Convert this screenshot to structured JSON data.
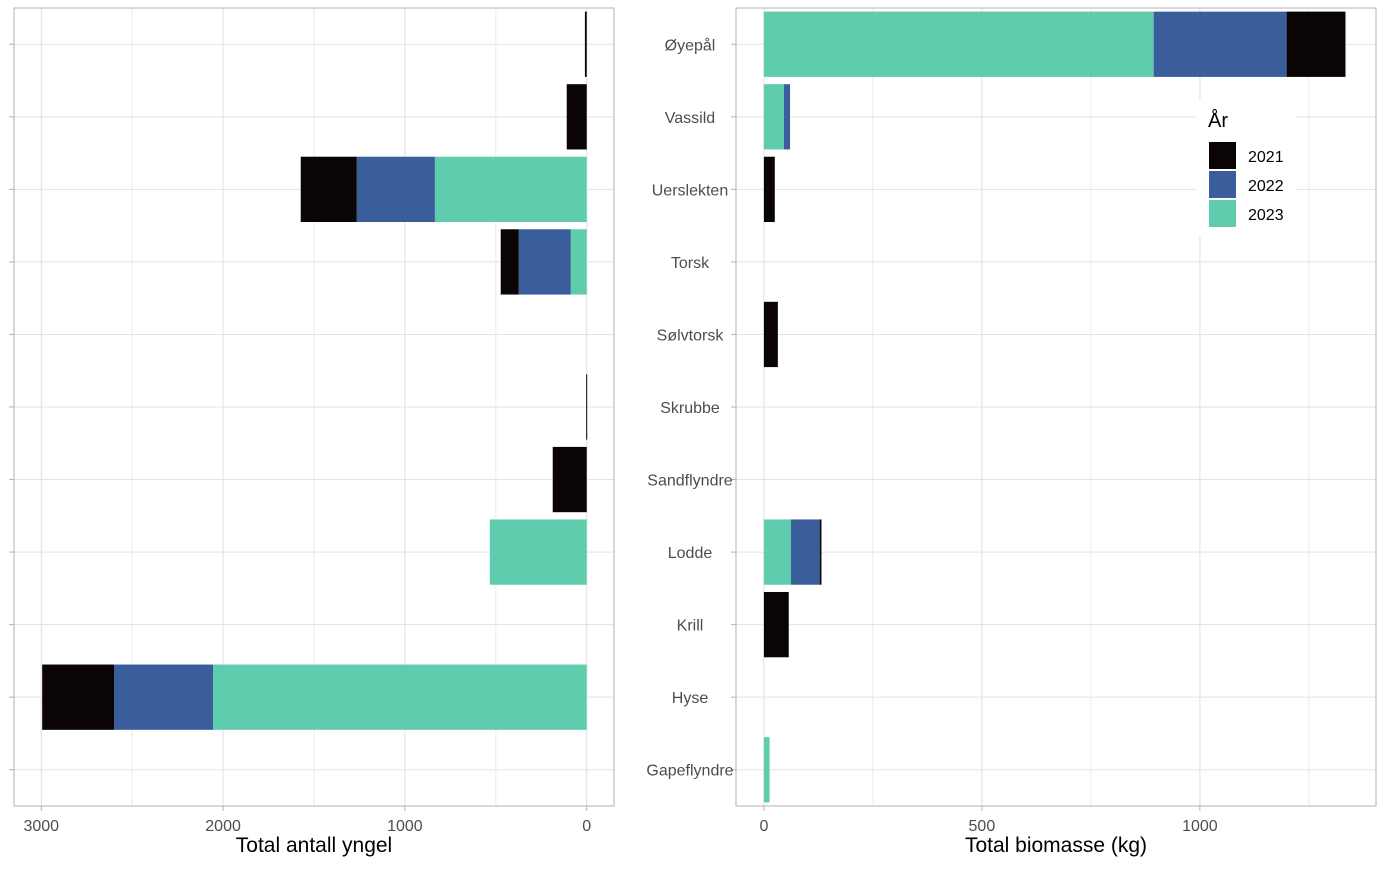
{
  "colors": {
    "2021": "#0b0405",
    "2022": "#3a5e9c",
    "2023": "#5fcdad"
  },
  "legend": {
    "title": "År",
    "entries": [
      "2021",
      "2022",
      "2023"
    ],
    "placement": "top-right of right panel"
  },
  "chart_data": [
    {
      "type": "bar",
      "orientation": "horizontal-stacked",
      "xlabel": "Total antall yngel",
      "ylabel": "",
      "xlim": [
        3150,
        -150
      ],
      "x_reversed": true,
      "xticks": [
        3000,
        2000,
        1000,
        0
      ],
      "grid": true,
      "categories": [
        "Øyepål",
        "Vassild",
        "Uerslekten",
        "Torsk",
        "Sølvtorsk",
        "Skrubbe",
        "Sandflyndre",
        "Lodde",
        "Krill",
        "Hyse",
        "Gapeflyndre"
      ],
      "series": [
        {
          "name": "2023",
          "values": [
            0,
            0,
            835,
            88,
            0,
            0,
            0,
            533,
            0,
            2055,
            0
          ]
        },
        {
          "name": "2022",
          "values": [
            0,
            0,
            430,
            286,
            0,
            0,
            0,
            0,
            0,
            544,
            0
          ]
        },
        {
          "name": "2021",
          "values": [
            10,
            110,
            308,
            99,
            0,
            3,
            187,
            0,
            0,
            396,
            0
          ]
        }
      ]
    },
    {
      "type": "bar",
      "orientation": "horizontal-stacked",
      "xlabel": "Total biomasse (kg)",
      "ylabel": "",
      "xlim": [
        -64,
        1404
      ],
      "xticks": [
        0,
        500,
        1000
      ],
      "grid": true,
      "categories": [
        "Øyepål",
        "Vassild",
        "Uerslekten",
        "Torsk",
        "Sølvtorsk",
        "Skrubbe",
        "Sandflyndre",
        "Lodde",
        "Krill",
        "Hyse",
        "Gapeflyndre"
      ],
      "series": [
        {
          "name": "2023",
          "values": [
            894,
            46,
            0,
            0,
            0,
            0,
            0,
            62,
            0,
            0,
            13
          ]
        },
        {
          "name": "2022",
          "values": [
            305,
            14,
            0,
            0,
            0,
            0,
            0,
            66,
            0,
            0,
            0
          ]
        },
        {
          "name": "2021",
          "values": [
            135,
            0,
            25,
            0,
            32,
            0,
            0,
            4,
            57,
            0,
            0
          ]
        }
      ]
    }
  ]
}
